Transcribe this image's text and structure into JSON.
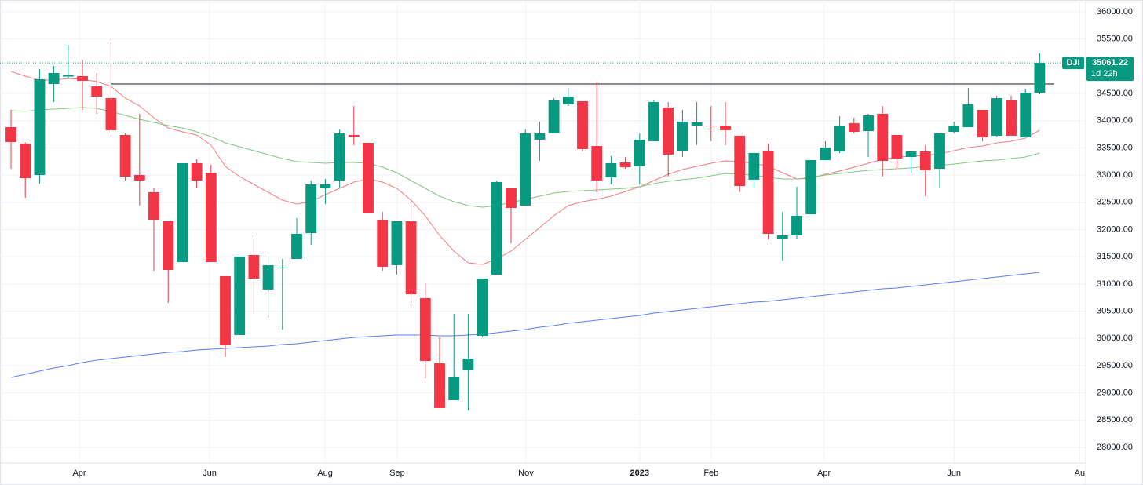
{
  "chart_data": {
    "type": "candlestick",
    "symbol": "DJI",
    "countdown": "1d 22h",
    "up_color": "#089981",
    "down_color": "#f23645",
    "open": [
      33881,
      33578,
      33002,
      34674,
      34810,
      34818,
      34631,
      34414,
      33737,
      33002,
      32685,
      32152,
      31402,
      33218,
      33045,
      31143,
      30062,
      31532,
      30898,
      31287,
      31460,
      31935,
      32757,
      32901,
      33737,
      33593,
      32180,
      31345,
      32152,
      30739,
      29543,
      28865,
      29413,
      30047,
      31171,
      32757,
      32440,
      33651,
      33766,
      34299,
      34357,
      33535,
      32959,
      33232,
      33160,
      33622,
      34241,
      33449,
      33910,
      33910,
      33910,
      33723,
      32916,
      33449,
      31834,
      31892,
      32281,
      33276,
      33434,
      33953,
      33809,
      34126,
      33737,
      33333,
      33434,
      33117,
      33795,
      33881,
      34198,
      33723,
      34371,
      33694,
      34515
    ],
    "high": [
      34198,
      33600,
      34948,
      35005,
      35395,
      35120,
      34876,
      35496,
      33766,
      34126,
      32757,
      32152,
      33218,
      33290,
      33189,
      31143,
      31503,
      31892,
      31517,
      31460,
      32209,
      32901,
      32930,
      33838,
      34270,
      33593,
      32325,
      32152,
      32497,
      31027,
      30018,
      30451,
      30451,
      31099,
      32901,
      32757,
      33838,
      33982,
      34414,
      34602,
      34357,
      34717,
      33348,
      33333,
      33766,
      34371,
      34342,
      34198,
      34342,
      34270,
      34342,
      33723,
      33406,
      33578,
      32325,
      32786,
      33276,
      33622,
      34083,
      34054,
      34126,
      34270,
      33737,
      33434,
      33550,
      33766,
      33982,
      34602,
      34198,
      34457,
      34457,
      34588,
      35236
    ],
    "low": [
      33117,
      32584,
      32843,
      34342,
      34775,
      34198,
      34126,
      33766,
      32901,
      32440,
      31243,
      30653,
      31402,
      32757,
      31402,
      29658,
      30062,
      30451,
      30379,
      30163,
      31460,
      31719,
      32469,
      32757,
      33550,
      32296,
      31243,
      31172,
      30595,
      29269,
      28722,
      28865,
      28678,
      30018,
      31171,
      31748,
      32440,
      33261,
      33766,
      34270,
      33434,
      32685,
      32829,
      33117,
      32829,
      33622,
      32973,
      33333,
      33550,
      33622,
      33550,
      32685,
      32757,
      31820,
      31431,
      31834,
      32281,
      33276,
      33406,
      33766,
      33333,
      32973,
      33117,
      33045,
      32613,
      32757,
      33766,
      33881,
      33622,
      33694,
      33723,
      33694,
      34486
    ],
    "close": [
      33607,
      32944,
      34760,
      34876,
      34833,
      34732,
      34443,
      33823,
      32973,
      32901,
      32180,
      31258,
      33218,
      32901,
      31402,
      29874,
      31503,
      31099,
      31344,
      31301,
      31921,
      32829,
      32829,
      33766,
      33708,
      32296,
      31316,
      32152,
      30811,
      29586,
      28722,
      29298,
      29629,
      31099,
      32872,
      32397,
      33766,
      33766,
      34371,
      34443,
      33478,
      32901,
      33218,
      33146,
      33651,
      34342,
      33377,
      33982,
      33968,
      33896,
      33823,
      32800,
      33406,
      31921,
      31892,
      32253,
      33276,
      33507,
      33910,
      33795,
      34097,
      33261,
      33305,
      33434,
      33088,
      33766,
      33910,
      34299,
      33694,
      34414,
      33723,
      34515,
      35061.22
    ],
    "series": [
      {
        "color": "#f77c80",
        "values": [
          34905,
          34818,
          34746,
          34746,
          34775,
          34760,
          34717,
          34631,
          34414,
          34270,
          34054,
          33867,
          33795,
          33737,
          33550,
          33160,
          32973,
          32829,
          32685,
          32541,
          32469,
          32512,
          32642,
          32757,
          32872,
          32930,
          32872,
          32757,
          32541,
          32253,
          31892,
          31604,
          31388,
          31359,
          31460,
          31604,
          31820,
          32036,
          32253,
          32440,
          32512,
          32555,
          32613,
          32699,
          32786,
          32901,
          33016,
          33103,
          33160,
          33218,
          33261,
          33247,
          33218,
          33160,
          33045,
          32930,
          32944,
          33016,
          33074,
          33146,
          33218,
          33290,
          33333,
          33348,
          33362,
          33391,
          33449,
          33506,
          33535,
          33593,
          33622,
          33679,
          33823
        ]
      },
      {
        "color": "#81c784",
        "values": [
          34184,
          34170,
          34198,
          34213,
          34227,
          34241,
          34227,
          34170,
          34097,
          34025,
          33968,
          33910,
          33867,
          33795,
          33708,
          33593,
          33521,
          33449,
          33377,
          33305,
          33247,
          33232,
          33218,
          33232,
          33232,
          33218,
          33146,
          33045,
          32901,
          32757,
          32613,
          32512,
          32440,
          32411,
          32440,
          32497,
          32555,
          32613,
          32670,
          32699,
          32714,
          32728,
          32743,
          32757,
          32786,
          32843,
          32887,
          32916,
          32944,
          32987,
          33031,
          33016,
          33002,
          32959,
          32930,
          32930,
          32959,
          33002,
          33031,
          33059,
          33088,
          33103,
          33117,
          33132,
          33160,
          33175,
          33204,
          33232,
          33261,
          33276,
          33305,
          33333,
          33406
        ]
      },
      {
        "color": "#5b7ff0",
        "values": [
          29283,
          29341,
          29399,
          29456,
          29499,
          29557,
          29600,
          29629,
          29658,
          29687,
          29716,
          29744,
          29759,
          29788,
          29802,
          29817,
          29831,
          29845,
          29860,
          29889,
          29903,
          29932,
          29961,
          29989,
          30018,
          30033,
          30047,
          30062,
          30062,
          30062,
          30047,
          30047,
          30062,
          30076,
          30105,
          30134,
          30162,
          30206,
          30234,
          30278,
          30307,
          30335,
          30364,
          30393,
          30422,
          30465,
          30494,
          30523,
          30551,
          30580,
          30609,
          30638,
          30667,
          30681,
          30710,
          30739,
          30768,
          30797,
          30825,
          30854,
          30883,
          30912,
          30926,
          30955,
          30984,
          31013,
          31042,
          31070,
          31099,
          31128,
          31157,
          31186,
          31215
        ]
      }
    ],
    "horizontal_line": 34674,
    "xlim": [
      -0.77,
      75.22
    ],
    "xticks": [
      {
        "value": 4.78,
        "label": "Apr"
      },
      {
        "value": 13.9,
        "label": "Jun"
      },
      {
        "value": 21.98,
        "label": "Aug"
      },
      {
        "value": 27.03,
        "label": "Sep"
      },
      {
        "value": 36.04,
        "label": "Nov"
      },
      {
        "value": 44.0,
        "label": "2023"
      },
      {
        "value": 49.0,
        "label": "Feb"
      },
      {
        "value": 56.9,
        "label": "Apr"
      },
      {
        "value": 66.0,
        "label": "Jun"
      },
      {
        "value": 74.8,
        "label": "Au"
      }
    ],
    "ylim": [
      27712,
      36216
    ],
    "yticks": [
      {
        "value": 28000,
        "label": "28000.00"
      },
      {
        "value": 28500,
        "label": "28500.00"
      },
      {
        "value": 29000,
        "label": "29000.00"
      },
      {
        "value": 29500,
        "label": "29500.00"
      },
      {
        "value": 30000,
        "label": "30000.00"
      },
      {
        "value": 30500,
        "label": "30500.00"
      },
      {
        "value": 31000,
        "label": "31000.00"
      },
      {
        "value": 31500,
        "label": "31500.00"
      },
      {
        "value": 32000,
        "label": "32000.00"
      },
      {
        "value": 32500,
        "label": "32500.00"
      },
      {
        "value": 33000,
        "label": "33000.00"
      },
      {
        "value": 33500,
        "label": "33500.00"
      },
      {
        "value": 34000,
        "label": "34000.00"
      },
      {
        "value": 34500,
        "label": "34500.00"
      },
      {
        "value": 35000,
        "label": "35000.00"
      },
      {
        "value": 35500,
        "label": "35500.00"
      },
      {
        "value": 36000,
        "label": "36000.00"
      }
    ],
    "grid": true
  }
}
